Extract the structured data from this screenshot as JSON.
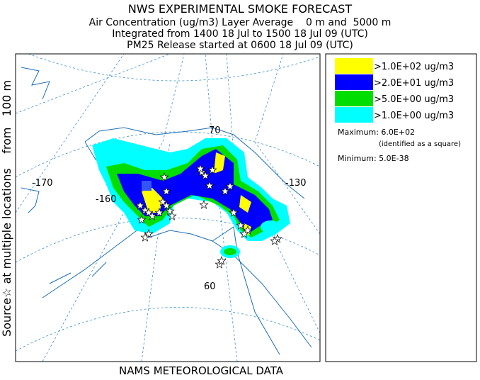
{
  "header": {
    "title": "NWS EXPERIMENTAL SMOKE FORECAST",
    "lines": [
      "Air Concentration (ug/m3) Layer Average    0 m and  5000 m",
      "Integrated from 1400 18 Jul to 1500 18 Jul 09 (UTC)",
      "PM25 Release started at 0600 18 Jul 09 (UTC)"
    ]
  },
  "side_label": "Source☆ at multiple locations    from   100 m",
  "footer": "NAMS METEOROLOGICAL DATA",
  "legend": {
    "items": [
      {
        "label": ">1.0E+02 ug/m3",
        "color": "#ffff00"
      },
      {
        "label": ">2.0E+01 ug/m3",
        "color": "#0000ff"
      },
      {
        "label": ">5.0E+00 ug/m3",
        "color": "#00dd00"
      },
      {
        "label": ">1.0E+00 ug/m3",
        "color": "#00ffff"
      }
    ],
    "maximum": "Maximum: 6.0E+02",
    "maximum_note": "(identified as a square)",
    "minimum": "Minimum: 5.0E-38"
  },
  "map": {
    "labels": [
      "-170",
      "-160",
      "-130",
      "70",
      "60"
    ]
  }
}
